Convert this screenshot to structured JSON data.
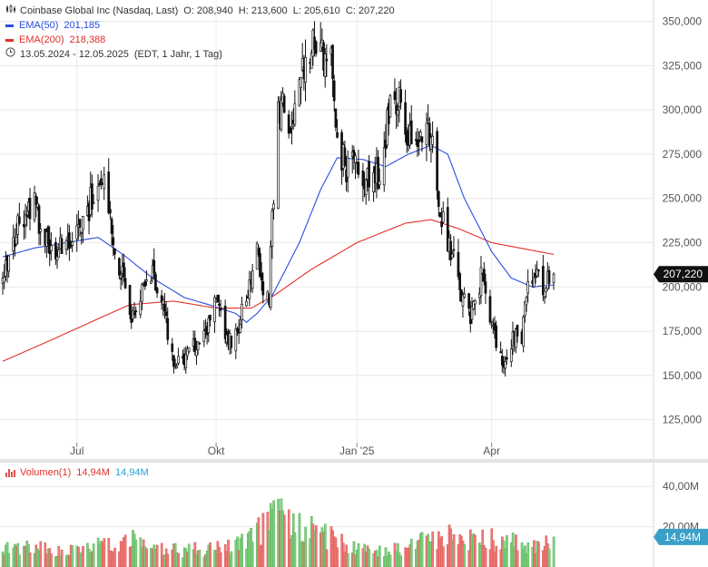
{
  "header": {
    "title": "Coinbase Global Inc (Nasdaq, Last)",
    "ohlc": "O: 208,940  H: 213,600  L: 205,610  C: 207,220",
    "ema50_label": "EMA(50)",
    "ema50_value": "201,185",
    "ema200_label": "EMA(200)",
    "ema200_value": "218,388",
    "period": "13.05.2024 - 12.05.2025",
    "period_note": "(EDT, 1 Jahr, 1 Tag)"
  },
  "volume_legend": {
    "label": "Volumen(1)",
    "value_red": "14,94M",
    "value_blue": "14,94M"
  },
  "colors": {
    "ema50": "#2a4de0",
    "ema200": "#e0302a",
    "candle": "#111111",
    "vol_up": "#7fcf7f",
    "vol_down": "#f07a78",
    "price_badge": "#111111",
    "volume_badge": "#3aa0c9",
    "volume_text_blue": "#2a9fd0",
    "volume_text_red": "#e0302a"
  },
  "icons": {
    "chart_type": "candlestick-icon",
    "clock": "clock-icon",
    "volume": "volume-bars-icon"
  },
  "chart_data": [
    {
      "type": "candlestick",
      "title": "Coinbase Global Inc (Nasdaq, Last)",
      "y_axis": {
        "range": [
          112000,
          358000
        ],
        "ticks": [
          "125,000",
          "150,000",
          "175,000",
          "200,000",
          "225,000",
          "250,000",
          "275,000",
          "300,000",
          "325,000",
          "350,000"
        ],
        "tick_values": [
          125000,
          150000,
          175000,
          200000,
          225000,
          250000,
          275000,
          300000,
          325000,
          350000
        ],
        "side": "right"
      },
      "x_axis": {
        "ticks": [
          "Jul",
          "Okt",
          "Jan '25",
          "Apr"
        ],
        "tick_dates": [
          "2024-07-01",
          "2024-10-01",
          "2025-01-02",
          "2025-04-01"
        ]
      },
      "grid": true,
      "last_price_label": "207,220",
      "last_price": 207220,
      "close_anchors": [
        [
          "2024-05-13",
          205000
        ],
        [
          "2024-05-22",
          232000
        ],
        [
          "2024-06-03",
          245000
        ],
        [
          "2024-06-14",
          220000
        ],
        [
          "2024-06-24",
          222000
        ],
        [
          "2024-07-03",
          232000
        ],
        [
          "2024-07-11",
          250000
        ],
        [
          "2024-07-18",
          265000
        ],
        [
          "2024-07-25",
          225000
        ],
        [
          "2024-08-01",
          205000
        ],
        [
          "2024-08-06",
          185000
        ],
        [
          "2024-08-12",
          195000
        ],
        [
          "2024-08-20",
          205000
        ],
        [
          "2024-08-26",
          195000
        ],
        [
          "2024-09-03",
          155000
        ],
        [
          "2024-09-10",
          160000
        ],
        [
          "2024-09-16",
          168000
        ],
        [
          "2024-09-24",
          175000
        ],
        [
          "2024-10-01",
          190000
        ],
        [
          "2024-10-08",
          170000
        ],
        [
          "2024-10-14",
          172000
        ],
        [
          "2024-10-21",
          195000
        ],
        [
          "2024-10-28",
          218000
        ],
        [
          "2024-11-01",
          195000
        ],
        [
          "2024-11-05",
          195000
        ],
        [
          "2024-11-07",
          240000
        ],
        [
          "2024-11-11",
          300000
        ],
        [
          "2024-11-14",
          300000
        ],
        [
          "2024-11-19",
          290000
        ],
        [
          "2024-11-25",
          320000
        ],
        [
          "2024-12-03",
          340000
        ],
        [
          "2024-12-09",
          330000
        ],
        [
          "2024-12-16",
          330000
        ],
        [
          "2024-12-20",
          280000
        ],
        [
          "2024-12-27",
          265000
        ],
        [
          "2025-01-03",
          270000
        ],
        [
          "2025-01-10",
          258000
        ],
        [
          "2025-01-17",
          265000
        ],
        [
          "2025-01-24",
          300000
        ],
        [
          "2025-01-31",
          305000
        ],
        [
          "2025-02-07",
          278000
        ],
        [
          "2025-02-13",
          285000
        ],
        [
          "2025-02-20",
          285000
        ],
        [
          "2025-02-25",
          250000
        ],
        [
          "2025-03-03",
          225000
        ],
        [
          "2025-03-07",
          215000
        ],
        [
          "2025-03-12",
          195000
        ],
        [
          "2025-03-18",
          185000
        ],
        [
          "2025-03-25",
          205000
        ],
        [
          "2025-03-31",
          182000
        ],
        [
          "2025-04-04",
          168000
        ],
        [
          "2025-04-08",
          155000
        ],
        [
          "2025-04-14",
          170000
        ],
        [
          "2025-04-21",
          172000
        ],
        [
          "2025-04-25",
          205000
        ],
        [
          "2025-05-01",
          205000
        ],
        [
          "2025-05-06",
          200000
        ],
        [
          "2025-05-12",
          207220
        ]
      ],
      "ema50_anchors": [
        [
          "2024-05-13",
          217000
        ],
        [
          "2024-06-03",
          222000
        ],
        [
          "2024-06-24",
          225000
        ],
        [
          "2024-07-15",
          228000
        ],
        [
          "2024-08-01",
          218000
        ],
        [
          "2024-08-20",
          205000
        ],
        [
          "2024-09-10",
          194000
        ],
        [
          "2024-09-26",
          190000
        ],
        [
          "2024-10-14",
          185000
        ],
        [
          "2024-10-21",
          180000
        ],
        [
          "2024-10-28",
          185000
        ],
        [
          "2024-11-07",
          195000
        ],
        [
          "2024-11-25",
          225000
        ],
        [
          "2024-12-09",
          255000
        ],
        [
          "2024-12-20",
          273000
        ],
        [
          "2025-01-06",
          272000
        ],
        [
          "2025-01-21",
          268000
        ],
        [
          "2025-02-05",
          275000
        ],
        [
          "2025-02-20",
          280000
        ],
        [
          "2025-03-03",
          275000
        ],
        [
          "2025-03-14",
          250000
        ],
        [
          "2025-04-01",
          220000
        ],
        [
          "2025-04-14",
          205000
        ],
        [
          "2025-04-28",
          200000
        ],
        [
          "2025-05-12",
          201185
        ]
      ],
      "ema200_anchors": [
        [
          "2024-05-13",
          158000
        ],
        [
          "2024-06-14",
          170000
        ],
        [
          "2024-07-15",
          182000
        ],
        [
          "2024-08-05",
          190000
        ],
        [
          "2024-09-03",
          192000
        ],
        [
          "2024-10-01",
          188000
        ],
        [
          "2024-10-24",
          188000
        ],
        [
          "2024-11-08",
          195000
        ],
        [
          "2024-12-03",
          210000
        ],
        [
          "2025-01-02",
          225000
        ],
        [
          "2025-02-03",
          236000
        ],
        [
          "2025-02-20",
          238000
        ],
        [
          "2025-03-10",
          233000
        ],
        [
          "2025-04-01",
          225000
        ],
        [
          "2025-05-12",
          218388
        ]
      ],
      "series": [
        {
          "name": "EMA(50)",
          "last_value": 201185
        },
        {
          "name": "EMA(200)",
          "last_value": 218388
        }
      ]
    },
    {
      "type": "bar",
      "title": "Volumen(1)",
      "y_axis": {
        "ticks": [
          "20,00M",
          "40,00M"
        ],
        "tick_values": [
          20000000,
          40000000
        ]
      },
      "last_volume_label": "14,94M",
      "last_volume": 14940000,
      "volume_anchors": [
        [
          "2024-05-13",
          10000000
        ],
        [
          "2024-06-03",
          9000000
        ],
        [
          "2024-07-01",
          8000000
        ],
        [
          "2024-07-18",
          11000000
        ],
        [
          "2024-08-05",
          13000000
        ],
        [
          "2024-09-01",
          8000000
        ],
        [
          "2024-10-01",
          9000000
        ],
        [
          "2024-10-21",
          12000000
        ],
        [
          "2024-11-06",
          22000000
        ],
        [
          "2024-11-11",
          42000000
        ],
        [
          "2024-11-18",
          25000000
        ],
        [
          "2024-12-09",
          17000000
        ],
        [
          "2025-01-02",
          8000000
        ],
        [
          "2025-02-01",
          9000000
        ],
        [
          "2025-02-20",
          14000000
        ],
        [
          "2025-03-10",
          15000000
        ],
        [
          "2025-04-08",
          13000000
        ],
        [
          "2025-04-28",
          10000000
        ],
        [
          "2025-05-12",
          14940000
        ]
      ]
    }
  ]
}
